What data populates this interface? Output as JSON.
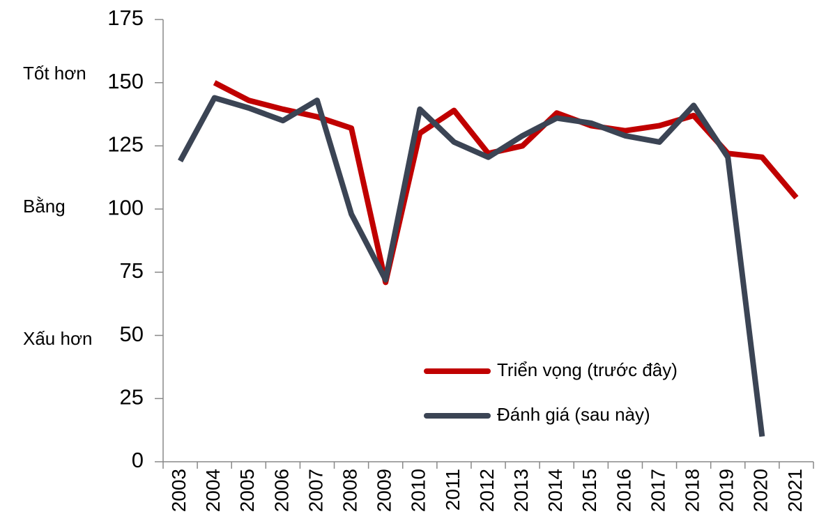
{
  "chart_data": {
    "type": "line",
    "annotations": [
      "Tốt hơn",
      "Bằng",
      "Xấu hơn"
    ],
    "categories": [
      "2003",
      "2004",
      "2005",
      "2006",
      "2007",
      "2008",
      "2009",
      "2010",
      "2011",
      "2012",
      "2013",
      "2014",
      "2015",
      "2016",
      "2017",
      "2018",
      "2019",
      "2020",
      "2021"
    ],
    "series": [
      {
        "name": "Triển vọng (trước đây)",
        "color": "#c00000",
        "values": [
          null,
          150,
          143,
          139.5,
          136.5,
          132,
          71,
          130,
          139,
          122,
          125,
          138,
          133,
          131,
          133,
          137,
          122,
          120.5,
          104.5
        ]
      },
      {
        "name": "Đánh giá (sau này)",
        "color": "#3b4454",
        "values": [
          119,
          144,
          140,
          135,
          143,
          98,
          72,
          139.5,
          126.5,
          120.5,
          129,
          136,
          134,
          129,
          126.5,
          141,
          120.5,
          10,
          null
        ]
      }
    ],
    "ylim": [
      0,
      175
    ],
    "yticks": [
      0,
      25,
      50,
      75,
      100,
      125,
      150,
      175
    ],
    "grid": false
  }
}
